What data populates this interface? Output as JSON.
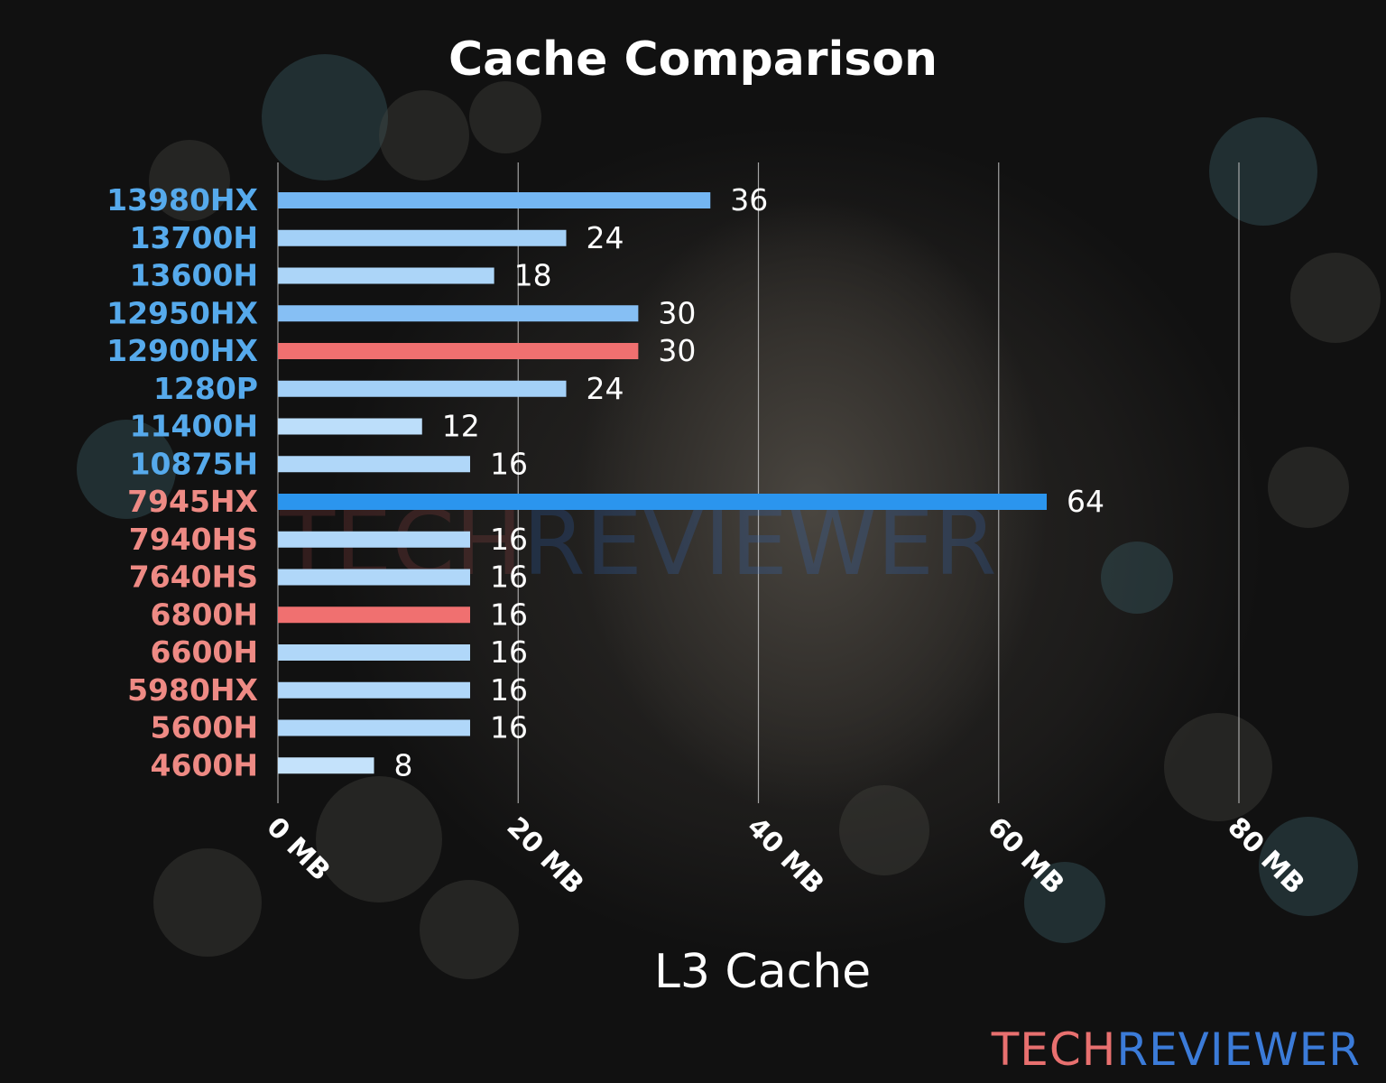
{
  "chart_data": {
    "type": "bar",
    "orientation": "horizontal",
    "title": "Cache Comparison",
    "xlabel": "L3 Cache",
    "ylabel": "",
    "xlim": [
      0,
      80
    ],
    "x_ticks": [
      0,
      20,
      40,
      60,
      80
    ],
    "x_tick_labels": [
      "0 MB",
      "20 MB",
      "40 MB",
      "60 MB",
      "80 MB"
    ],
    "grid": "vertical lines",
    "categories": [
      "13980HX",
      "13700H",
      "13600H",
      "12950HX",
      "12900HX",
      "1280P",
      "11400H",
      "10875H",
      "7945HX",
      "7940HS",
      "7640HS",
      "6800H",
      "6600H",
      "5980HX",
      "5600H",
      "4600H"
    ],
    "values": [
      36,
      24,
      18,
      30,
      30,
      24,
      12,
      16,
      64,
      16,
      16,
      16,
      16,
      16,
      16,
      8
    ],
    "label_colors": [
      "#56aaec",
      "#56aaec",
      "#56aaec",
      "#56aaec",
      "#56aaec",
      "#56aaec",
      "#56aaec",
      "#56aaec",
      "#ee8a84",
      "#ee8a84",
      "#ee8a84",
      "#ee8a84",
      "#ee8a84",
      "#ee8a84",
      "#ee8a84",
      "#ee8a84"
    ],
    "bar_colors": [
      "#74b6f2",
      "#a3d0f7",
      "#acd5f8",
      "#86bff4",
      "#f07070",
      "#a3d0f7",
      "#bcdefa",
      "#b0d7f9",
      "#2b95ee",
      "#b0d7f9",
      "#b0d7f9",
      "#f07070",
      "#b0d7f9",
      "#b0d7f9",
      "#b0d7f9",
      "#c4e2fb"
    ]
  },
  "watermark": [
    "TECH",
    "REVIEWER"
  ],
  "brand": [
    "TECH",
    "REVIEWER"
  ]
}
